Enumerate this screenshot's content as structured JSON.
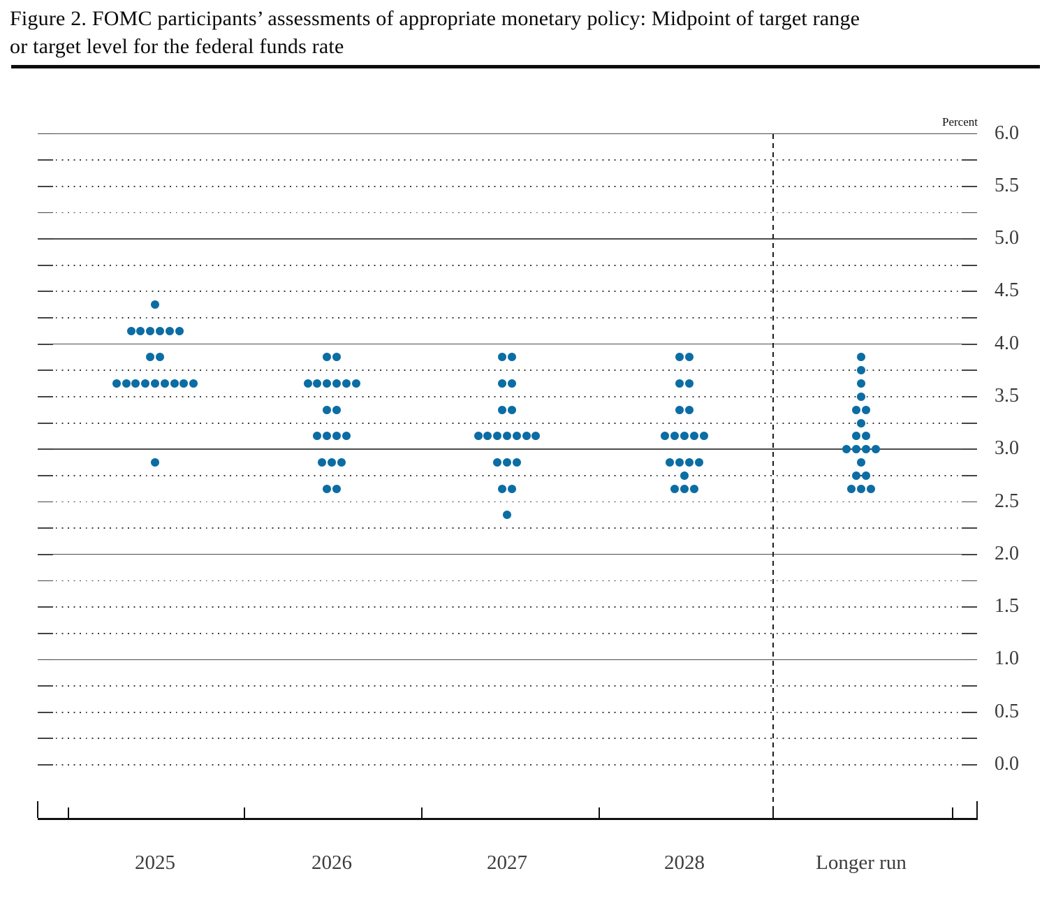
{
  "figure": {
    "title_line1": "Figure 2. FOMC participants’ assessments of appropriate monetary policy: Midpoint of target range",
    "title_line2": "or target level for the federal funds rate"
  },
  "chart_data": {
    "type": "scatter",
    "subtype": "fomc-dot-plot",
    "title": "FOMC participants’ assessments of appropriate monetary policy: Midpoint of target range or target level for the federal funds rate",
    "ylabel": "Percent",
    "xlabel": "",
    "ylim": [
      0.0,
      6.0
    ],
    "y_grid_step": 0.25,
    "y_tick_label_step": 0.5,
    "y_tick_labels": [
      "6.0",
      "5.5",
      "5.0",
      "4.5",
      "4.0",
      "3.5",
      "3.0",
      "2.5",
      "2.0",
      "1.5",
      "1.0",
      "0.5",
      "0.0"
    ],
    "grid": "dotted quarter/half lines with end ticks; solid lines at whole percents; dotted at 0.0",
    "legend_position": "none",
    "categories": [
      "2025",
      "2026",
      "2027",
      "2028",
      "Longer run"
    ],
    "series": [
      {
        "category": "2025",
        "dots": [
          {
            "rate": 4.375,
            "count": 1
          },
          {
            "rate": 4.125,
            "count": 6
          },
          {
            "rate": 3.875,
            "count": 2
          },
          {
            "rate": 3.625,
            "count": 9
          },
          {
            "rate": 2.875,
            "count": 1
          }
        ]
      },
      {
        "category": "2026",
        "dots": [
          {
            "rate": 3.875,
            "count": 2
          },
          {
            "rate": 3.625,
            "count": 6
          },
          {
            "rate": 3.375,
            "count": 2
          },
          {
            "rate": 3.125,
            "count": 4
          },
          {
            "rate": 2.875,
            "count": 3
          },
          {
            "rate": 2.625,
            "count": 2
          }
        ]
      },
      {
        "category": "2027",
        "dots": [
          {
            "rate": 3.875,
            "count": 2
          },
          {
            "rate": 3.625,
            "count": 2
          },
          {
            "rate": 3.375,
            "count": 2
          },
          {
            "rate": 3.125,
            "count": 7
          },
          {
            "rate": 2.875,
            "count": 3
          },
          {
            "rate": 2.625,
            "count": 2
          },
          {
            "rate": 2.375,
            "count": 1
          }
        ]
      },
      {
        "category": "2028",
        "dots": [
          {
            "rate": 3.875,
            "count": 2
          },
          {
            "rate": 3.625,
            "count": 2
          },
          {
            "rate": 3.375,
            "count": 2
          },
          {
            "rate": 3.125,
            "count": 5
          },
          {
            "rate": 2.875,
            "count": 4
          },
          {
            "rate": 2.75,
            "count": 1
          },
          {
            "rate": 2.625,
            "count": 3
          }
        ]
      },
      {
        "category": "Longer run",
        "dots": [
          {
            "rate": 3.875,
            "count": 1
          },
          {
            "rate": 3.75,
            "count": 1
          },
          {
            "rate": 3.625,
            "count": 1
          },
          {
            "rate": 3.5,
            "count": 1
          },
          {
            "rate": 3.375,
            "count": 2
          },
          {
            "rate": 3.25,
            "count": 1
          },
          {
            "rate": 3.125,
            "count": 2
          },
          {
            "rate": 3.0,
            "count": 4
          },
          {
            "rate": 2.875,
            "count": 1
          },
          {
            "rate": 2.75,
            "count": 2
          },
          {
            "rate": 2.625,
            "count": 3
          }
        ]
      }
    ],
    "colors": {
      "dot": "#0c6da4",
      "grid_solid": "#4c4c4c",
      "grid_dotted": "#3c3c3c",
      "axis": "#101010",
      "tick_label": "#3a3a3a"
    }
  }
}
